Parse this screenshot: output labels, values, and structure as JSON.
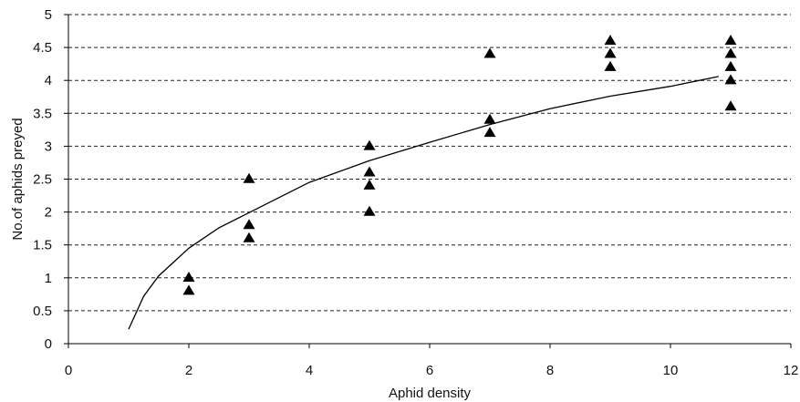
{
  "chart_data": {
    "type": "scatter",
    "title": "",
    "xlabel": "Aphid density",
    "ylabel": "No.of aphids preyed",
    "xlim": [
      0,
      12
    ],
    "ylim": [
      0,
      5
    ],
    "x_ticks": [
      "0",
      "2",
      "4",
      "6",
      "8",
      "10",
      "12"
    ],
    "y_ticks": [
      "0",
      "0.5",
      "1",
      "1.5",
      "2",
      "2.5",
      "3",
      "3.5",
      "4",
      "4.5",
      "5"
    ],
    "grid": "horizontal dashed",
    "legend": "none",
    "series": [
      {
        "marker": "triangle",
        "color": "#000000",
        "points": [
          {
            "x": 2,
            "y": 1.0
          },
          {
            "x": 2,
            "y": 0.8
          },
          {
            "x": 3,
            "y": 2.5
          },
          {
            "x": 3,
            "y": 1.8
          },
          {
            "x": 3,
            "y": 1.6
          },
          {
            "x": 5,
            "y": 3.0
          },
          {
            "x": 5,
            "y": 2.6
          },
          {
            "x": 5,
            "y": 2.4
          },
          {
            "x": 5,
            "y": 2.0
          },
          {
            "x": 7,
            "y": 4.4
          },
          {
            "x": 7,
            "y": 3.4
          },
          {
            "x": 7,
            "y": 3.2
          },
          {
            "x": 9,
            "y": 4.6
          },
          {
            "x": 9,
            "y": 4.4
          },
          {
            "x": 9,
            "y": 4.2
          },
          {
            "x": 11,
            "y": 4.6
          },
          {
            "x": 11,
            "y": 4.4
          },
          {
            "x": 11,
            "y": 4.2
          },
          {
            "x": 11,
            "y": 4.0
          },
          {
            "x": 11,
            "y": 3.6
          }
        ]
      },
      {
        "type": "line",
        "color": "#000000",
        "points": [
          {
            "x": 1.0,
            "y": 0.22
          },
          {
            "x": 1.25,
            "y": 0.72
          },
          {
            "x": 1.5,
            "y": 1.03
          },
          {
            "x": 2.0,
            "y": 1.45
          },
          {
            "x": 2.5,
            "y": 1.76
          },
          {
            "x": 3.0,
            "y": 1.99
          },
          {
            "x": 4.0,
            "y": 2.45
          },
          {
            "x": 5.0,
            "y": 2.78
          },
          {
            "x": 6.0,
            "y": 3.06
          },
          {
            "x": 7.0,
            "y": 3.33
          },
          {
            "x": 8.0,
            "y": 3.57
          },
          {
            "x": 9.0,
            "y": 3.76
          },
          {
            "x": 10.0,
            "y": 3.91
          },
          {
            "x": 10.8,
            "y": 4.06
          }
        ]
      }
    ]
  }
}
